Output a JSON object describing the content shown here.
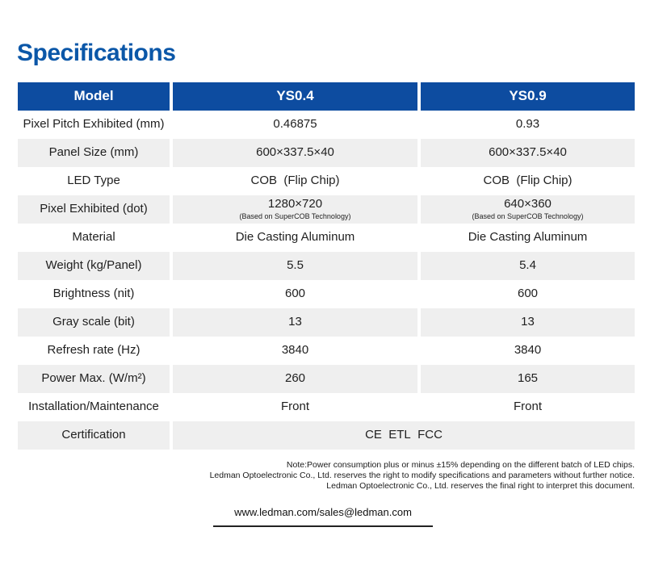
{
  "page": {
    "title": "Specifications"
  },
  "colors": {
    "title_color": "#0B57A8",
    "header_bg": "#0D4CA0",
    "row_alt": "#EFEFEF"
  },
  "table": {
    "header": {
      "model": "Model",
      "ys04": "YS0.4",
      "ys09": "YS0.9"
    },
    "rows": [
      {
        "label": "Pixel Pitch Exhibited (mm)",
        "ys04": "0.46875",
        "ys09": "0.93"
      },
      {
        "label": "Panel Size (mm)",
        "ys04": "600×337.5×40",
        "ys09": "600×337.5×40"
      },
      {
        "label": "LED Type",
        "ys04": "COB  (Flip Chip)",
        "ys09": "COB  (Flip Chip)"
      },
      {
        "label": "Pixel Exhibited (dot)",
        "ys04": "1280×720",
        "ys04_sub": "(Based on SuperCOB Technology)",
        "ys09": "640×360",
        "ys09_sub": "(Based on SuperCOB Technology)"
      },
      {
        "label": "Material",
        "ys04": "Die Casting Aluminum",
        "ys09": "Die Casting Aluminum"
      },
      {
        "label": "Weight (kg/Panel)",
        "ys04": "5.5",
        "ys09": "5.4"
      },
      {
        "label": "Brightness (nit)",
        "ys04": "600",
        "ys09": "600"
      },
      {
        "label": "Gray scale (bit)",
        "ys04": "13",
        "ys09": "13"
      },
      {
        "label": "Refresh rate (Hz)",
        "ys04": "3840",
        "ys09": "3840"
      },
      {
        "label": "Power Max. (W/m²)",
        "ys04": "260",
        "ys09": "165"
      },
      {
        "label": "Installation/Maintenance",
        "ys04": "Front",
        "ys09": "Front"
      },
      {
        "label": "Certification",
        "merged": "CE  ETL  FCC"
      }
    ]
  },
  "notes": {
    "line1": "Note:Power consumption plus or minus ±15% depending on the different batch of LED chips.",
    "line2": "Ledman Optoelectronic Co., Ltd. reserves the right to modify specifications and parameters without further notice.",
    "line3": "Ledman Optoelectronic Co., Ltd. reserves the final right to interpret this document."
  },
  "footer": {
    "url": "www.ledman.com/sales@ledman.com"
  }
}
